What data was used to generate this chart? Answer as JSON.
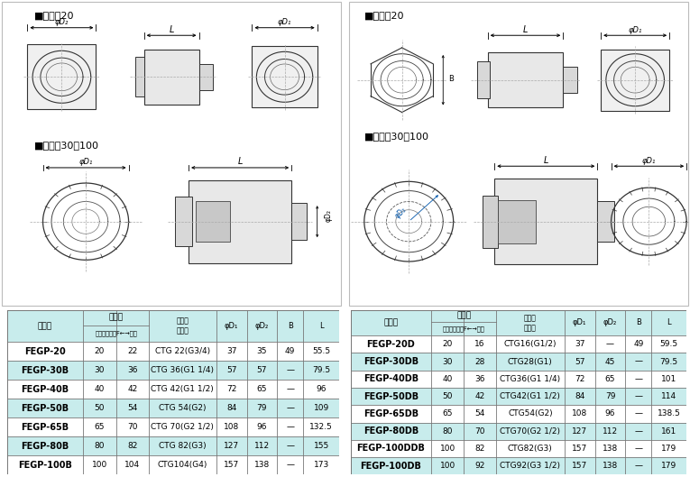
{
  "bg_color": "#ffffff",
  "left_table": {
    "rows": [
      [
        "FEGP-20",
        "20",
        "22",
        "CTG 22(G3/4)",
        "37",
        "35",
        "49",
        "55.5"
      ],
      [
        "FEGP-30B",
        "30",
        "36",
        "CTG 36(G1 1/4)",
        "57",
        "57",
        "—",
        "79.5"
      ],
      [
        "FEGP-40B",
        "40",
        "42",
        "CTG 42(G1 1/2)",
        "72",
        "65",
        "—",
        "96"
      ],
      [
        "FEGP-50B",
        "50",
        "54",
        "CTG 54(G2)",
        "84",
        "79",
        "—",
        "109"
      ],
      [
        "FEGP-65B",
        "65",
        "70",
        "CTG 70(G2 1/2)",
        "108",
        "96",
        "—",
        "132.5"
      ],
      [
        "FEGP-80B",
        "80",
        "82",
        "CTG 82(G3)",
        "127",
        "112",
        "—",
        "155"
      ],
      [
        "FEGP-100B",
        "100",
        "104",
        "CTG104(G4)",
        "157",
        "138",
        "—",
        "173"
      ]
    ]
  },
  "right_table": {
    "rows": [
      [
        "FEGP-20D",
        "20",
        "16",
        "CTG16(G1/2)",
        "37",
        "—",
        "49",
        "59.5"
      ],
      [
        "FEGP-30DB",
        "30",
        "28",
        "CTG28(G1)",
        "57",
        "45",
        "—",
        "79.5"
      ],
      [
        "FEGP-40DB",
        "40",
        "36",
        "CTG36(G1 1/4)",
        "72",
        "65",
        "—",
        "101"
      ],
      [
        "FEGP-50DB",
        "50",
        "42",
        "CTG42(G1 1/2)",
        "84",
        "79",
        "—",
        "114"
      ],
      [
        "FEGP-65DB",
        "65",
        "54",
        "CTG54(G2)",
        "108",
        "96",
        "—",
        "138.5"
      ],
      [
        "FEGP-80DB",
        "80",
        "70",
        "CTG70(G2 1/2)",
        "127",
        "112",
        "—",
        "161"
      ],
      [
        "FEGP-100DDB",
        "100",
        "82",
        "CTG82(G3)",
        "157",
        "138",
        "—",
        "179"
      ],
      [
        "FEGP-100DB",
        "100",
        "92",
        "CTG92(G3 1/2)",
        "157",
        "138",
        "—",
        "179"
      ]
    ]
  },
  "row_bg_alt": "#c8ecec",
  "row_bg_white": "#ffffff",
  "header_bg": "#c8ecec",
  "border_color": "#777777",
  "text_color": "#000000"
}
